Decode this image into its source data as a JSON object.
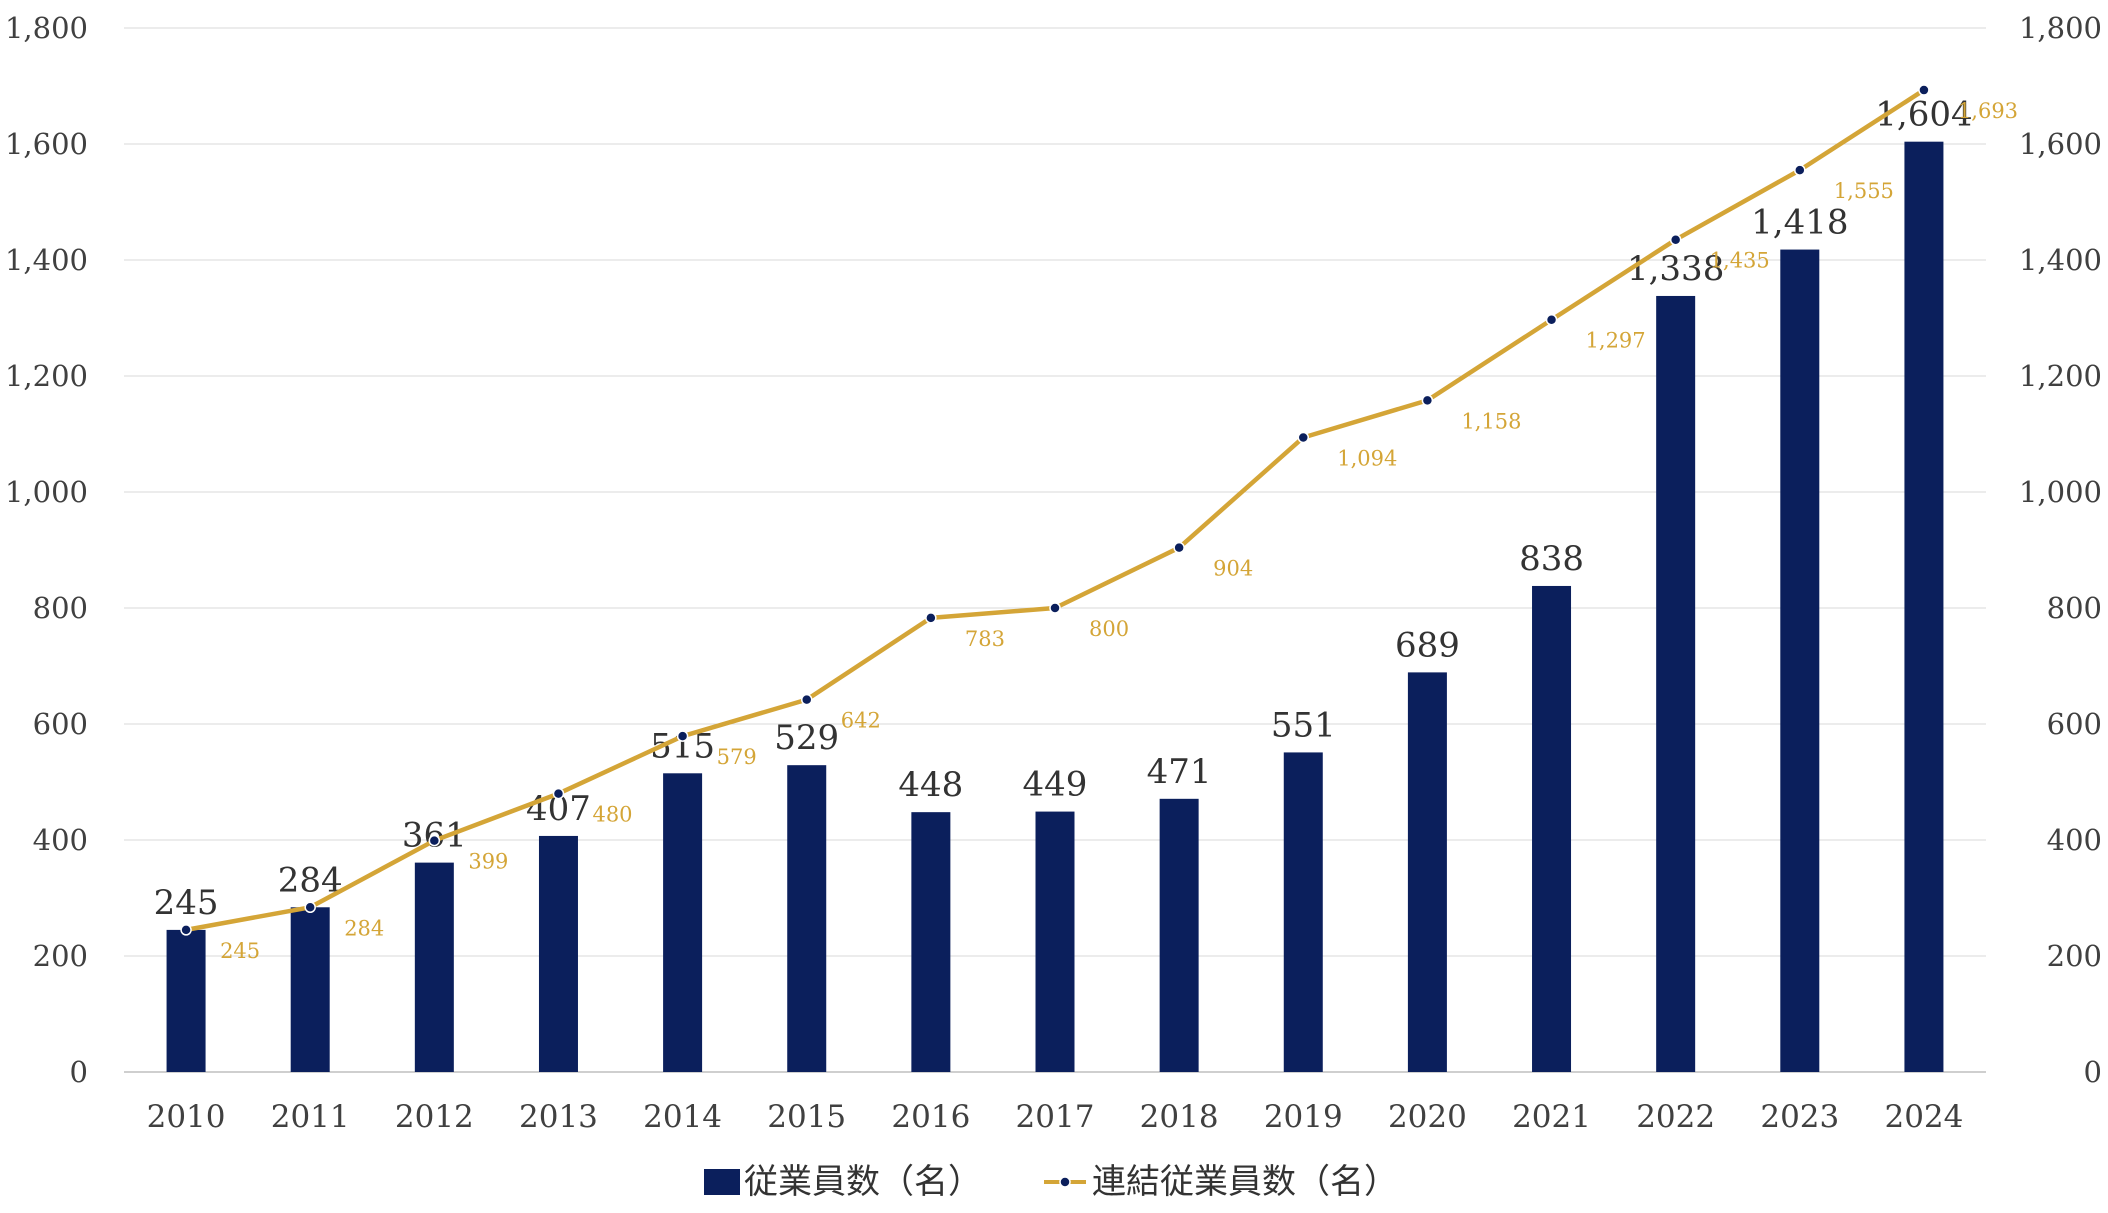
{
  "chart_data": {
    "type": "bar+line",
    "categories": [
      "2010",
      "2011",
      "2012",
      "2013",
      "2014",
      "2015",
      "2016",
      "2017",
      "2018",
      "2019",
      "2020",
      "2021",
      "2022",
      "2023",
      "2024"
    ],
    "series": [
      {
        "name": "従業員数（名）",
        "type": "bar",
        "axis": "left",
        "color": "#0b1f5c",
        "values": [
          245,
          284,
          361,
          407,
          515,
          529,
          448,
          449,
          471,
          551,
          689,
          838,
          1338,
          1418,
          1604
        ],
        "labels": [
          "245",
          "284",
          "361",
          "407",
          "515",
          "529",
          "448",
          "449",
          "471",
          "551",
          "689",
          "838",
          "1,338",
          "1,418",
          "1,604"
        ]
      },
      {
        "name": "連結従業員数（名）",
        "type": "line",
        "axis": "right",
        "color": "#d4a537",
        "marker_color": "#0b1f5c",
        "values": [
          245,
          284,
          399,
          480,
          579,
          642,
          783,
          800,
          904,
          1094,
          1158,
          1297,
          1435,
          1555,
          1693
        ],
        "labels": [
          "245",
          "284",
          "399",
          "480",
          "579",
          "642",
          "783",
          "800",
          "904",
          "1,094",
          "1,158",
          "1,297",
          "1,435",
          "1,555",
          "1,693"
        ]
      }
    ],
    "y_left": {
      "min": 0,
      "max": 1800,
      "ticks": [
        "0",
        "200",
        "400",
        "600",
        "800",
        "1,000",
        "1,200",
        "1,400",
        "1,600",
        "1,800"
      ]
    },
    "y_right": {
      "min": 0,
      "max": 1800,
      "ticks": [
        "0",
        "200",
        "400",
        "600",
        "800",
        "1,000",
        "1,200",
        "1,400",
        "1,600",
        "1,800"
      ]
    },
    "grid": true,
    "legend_position": "bottom"
  }
}
